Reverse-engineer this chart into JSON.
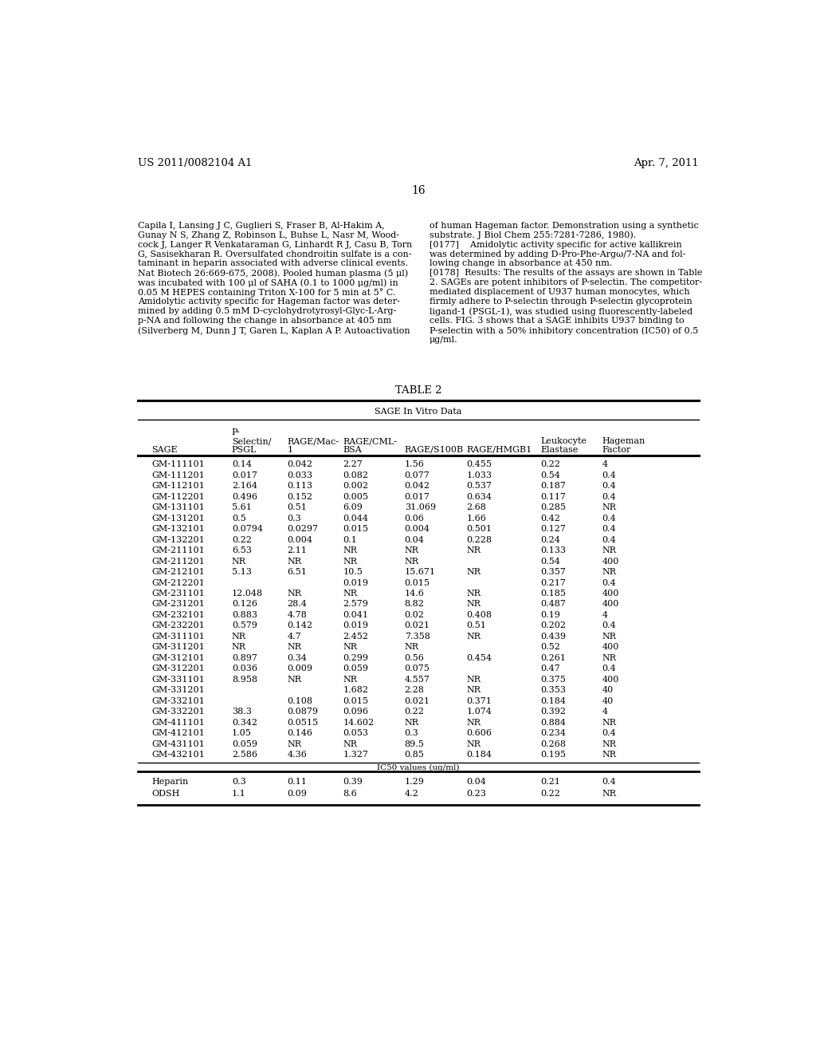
{
  "header_left": "US 2011/0082104 A1",
  "header_right": "Apr. 7, 2011",
  "page_number": "16",
  "left_text": [
    "Capila I, Lansing J C, Guglieri S, Fraser B, Al-Hakim A,",
    "Gunay N S, Zhang Z, Robinson L, Buhse L, Nasr M, Wood-",
    "cock J, Langer R Venkataraman G, Linhardt R J, Casu B, Torn",
    "G, Sasisekharan R. Oversulfated chondroitin sulfate is a con-",
    "taminant in heparin associated with adverse clinical events.",
    "Nat Biotech 26:669-675, 2008). Pooled human plasma (5 μl)",
    "was incubated with 100 μl of SAHA (0.1 to 1000 μg/ml) in",
    "0.05 M HEPES containing Triton X-100 for 5 min at 5° C.",
    "Amidolytic activity specific for Hageman factor was deter-",
    "mined by adding 0.5 mM D-cyclohydrotyrosyl-Glyc-L-Arg-",
    "p-NA and following the change in absorbance at 405 nm",
    "(Silverberg M, Dunn J T, Garen L, Kaplan A P. Autoactivation"
  ],
  "right_text": [
    "of human Hageman factor. Demonstration using a synthetic",
    "substrate. J Biol Chem 255:7281-7286, 1980).",
    "[0177]    Amidolytic activity specific for active kallikrein",
    "was determined by adding D-Pro-Phe-Argω/7-NA and fol-",
    "lowing change in absorbance at 450 nm.",
    "[0178]  Results: The results of the assays are shown in Table",
    "2. SAGEs are potent inhibitors of P-selectin. The competitor-",
    "mediated displacement of U937 human monocytes, which",
    "firmly adhere to P-selectin through P-selectin glycoprotein",
    "ligand-1 (PSGL-1), was studied using fluorescently-labeled",
    "cells. FIG. 3 shows that a SAGE inhibits U937 binding to",
    "P-selectin with a 50% inhibitory concentration (IC50) of 0.5",
    "μg/ml."
  ],
  "table_title": "TABLE 2",
  "table_subtitle": "SAGE In Vitro Data",
  "table_data": [
    [
      "GM-111101",
      "0.14",
      "0.042",
      "2.27",
      "1.56",
      "0.455",
      "0.22",
      "4"
    ],
    [
      "GM-111201",
      "0.017",
      "0.033",
      "0.082",
      "0.077",
      "1.033",
      "0.54",
      "0.4"
    ],
    [
      "GM-112101",
      "2.164",
      "0.113",
      "0.002",
      "0.042",
      "0.537",
      "0.187",
      "0.4"
    ],
    [
      "GM-112201",
      "0.496",
      "0.152",
      "0.005",
      "0.017",
      "0.634",
      "0.117",
      "0.4"
    ],
    [
      "GM-131101",
      "5.61",
      "0.51",
      "6.09",
      "31.069",
      "2.68",
      "0.285",
      "NR"
    ],
    [
      "GM-131201",
      "0.5",
      "0.3",
      "0.044",
      "0.06",
      "1.66",
      "0.42",
      "0.4"
    ],
    [
      "GM-132101",
      "0.0794",
      "0.0297",
      "0.015",
      "0.004",
      "0.501",
      "0.127",
      "0.4"
    ],
    [
      "GM-132201",
      "0.22",
      "0.004",
      "0.1",
      "0.04",
      "0.228",
      "0.24",
      "0.4"
    ],
    [
      "GM-211101",
      "6.53",
      "2.11",
      "NR",
      "NR",
      "NR",
      "0.133",
      "NR"
    ],
    [
      "GM-211201",
      "NR",
      "NR",
      "NR",
      "NR",
      "",
      "0.54",
      "400"
    ],
    [
      "GM-212101",
      "5.13",
      "6.51",
      "10.5",
      "15.671",
      "NR",
      "0.357",
      "NR"
    ],
    [
      "GM-212201",
      "",
      "",
      "0.019",
      "0.015",
      "",
      "0.217",
      "0.4"
    ],
    [
      "GM-231101",
      "12.048",
      "NR",
      "NR",
      "14.6",
      "NR",
      "0.185",
      "400"
    ],
    [
      "GM-231201",
      "0.126",
      "28.4",
      "2.579",
      "8.82",
      "NR",
      "0.487",
      "400"
    ],
    [
      "GM-232101",
      "0.883",
      "4.78",
      "0.041",
      "0.02",
      "0.408",
      "0.19",
      "4"
    ],
    [
      "GM-232201",
      "0.579",
      "0.142",
      "0.019",
      "0.021",
      "0.51",
      "0.202",
      "0.4"
    ],
    [
      "GM-311101",
      "NR",
      "4.7",
      "2.452",
      "7.358",
      "NR",
      "0.439",
      "NR"
    ],
    [
      "GM-311201",
      "NR",
      "NR",
      "NR",
      "NR",
      "",
      "0.52",
      "400"
    ],
    [
      "GM-312101",
      "0.897",
      "0.34",
      "0.299",
      "0.56",
      "0.454",
      "0.261",
      "NR"
    ],
    [
      "GM-312201",
      "0.036",
      "0.009",
      "0.059",
      "0.075",
      "",
      "0.47",
      "0.4"
    ],
    [
      "GM-331101",
      "8.958",
      "NR",
      "NR",
      "4.557",
      "NR",
      "0.375",
      "400"
    ],
    [
      "GM-331201",
      "",
      "",
      "1.682",
      "2.28",
      "NR",
      "0.353",
      "40"
    ],
    [
      "GM-332101",
      "",
      "0.108",
      "0.015",
      "0.021",
      "0.371",
      "0.184",
      "40"
    ],
    [
      "GM-332201",
      "38.3",
      "0.0879",
      "0.096",
      "0.22",
      "1.074",
      "0.392",
      "4"
    ],
    [
      "GM-411101",
      "0.342",
      "0.0515",
      "14.602",
      "NR",
      "NR",
      "0.884",
      "NR"
    ],
    [
      "GM-412101",
      "1.05",
      "0.146",
      "0.053",
      "0.3",
      "0.606",
      "0.234",
      "0.4"
    ],
    [
      "GM-431101",
      "0.059",
      "NR",
      "NR",
      "89.5",
      "NR",
      "0.268",
      "NR"
    ],
    [
      "GM-432101",
      "2.586",
      "4.36",
      "1.327",
      "0.85",
      "0.184",
      "0.195",
      "NR"
    ]
  ],
  "ic50_label": "IC50 values (ug/ml)",
  "bottom_data": [
    [
      "Heparin",
      "0.3",
      "0.11",
      "0.39",
      "1.29",
      "0.04",
      "0.21",
      "0.4"
    ],
    [
      "ODSH",
      "1.1",
      "0.09",
      "8.6",
      "4.2",
      "0.23",
      "0.22",
      "NR"
    ]
  ],
  "bg_color": "#ffffff",
  "text_color": "#000000",
  "body_fontsize": 8.0,
  "header_fontsize": 9.5,
  "table_title_fontsize": 9.5,
  "page_num_fontsize": 10.0
}
